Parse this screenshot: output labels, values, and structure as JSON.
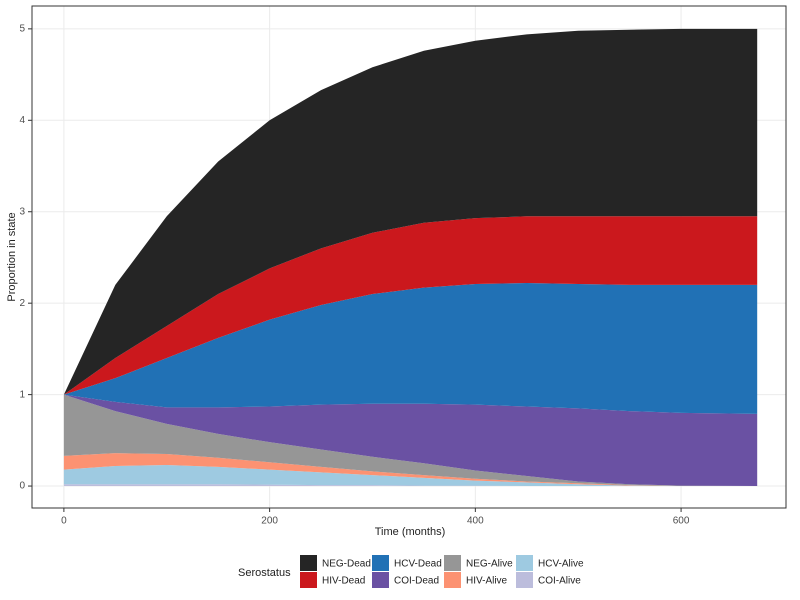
{
  "chart_data": {
    "type": "stacked-area",
    "x_label": "Time (months)",
    "y_label": "Proportion in state",
    "x": [
      0,
      50,
      100,
      150,
      200,
      250,
      300,
      350,
      400,
      450,
      500,
      550,
      600,
      674
    ],
    "legend_title": "Serostatus",
    "series": [
      {
        "name": "NEG-Dead",
        "color": "#252525",
        "values": [
          0,
          0.8,
          1.2,
          1.45,
          1.62,
          1.73,
          1.81,
          1.88,
          1.94,
          1.99,
          2.03,
          2.04,
          2.05,
          2.05
        ]
      },
      {
        "name": "HIV-Dead",
        "color": "#cb181d",
        "values": [
          0,
          0.22,
          0.35,
          0.48,
          0.56,
          0.62,
          0.67,
          0.71,
          0.72,
          0.73,
          0.74,
          0.75,
          0.75,
          0.75
        ]
      },
      {
        "name": "HCV-Dead",
        "color": "#2171b5",
        "values": [
          0,
          0.26,
          0.54,
          0.76,
          0.95,
          1.09,
          1.2,
          1.27,
          1.32,
          1.35,
          1.36,
          1.38,
          1.4,
          1.41
        ]
      },
      {
        "name": "COI-Dead",
        "color": "#6a51a3",
        "values": [
          0,
          0.1,
          0.18,
          0.29,
          0.39,
          0.49,
          0.58,
          0.65,
          0.72,
          0.76,
          0.8,
          0.8,
          0.795,
          0.79
        ]
      },
      {
        "name": "NEG-Alive",
        "color": "#969696",
        "values": [
          0.67,
          0.46,
          0.33,
          0.26,
          0.22,
          0.19,
          0.16,
          0.13,
          0.09,
          0.06,
          0.02,
          0.01,
          0.005,
          0
        ]
      },
      {
        "name": "HIV-Alive",
        "color": "#fc9272",
        "values": [
          0.15,
          0.14,
          0.12,
          0.1,
          0.08,
          0.06,
          0.04,
          0.03,
          0.02,
          0.01,
          0.01,
          0.005,
          0,
          0
        ]
      },
      {
        "name": "HCV-Alive",
        "color": "#9ecae1",
        "values": [
          0.16,
          0.2,
          0.21,
          0.19,
          0.165,
          0.14,
          0.11,
          0.085,
          0.055,
          0.04,
          0.02,
          0.005,
          0,
          0
        ]
      },
      {
        "name": "COI-Alive",
        "color": "#bcbddc",
        "values": [
          0.02,
          0.02,
          0.02,
          0.02,
          0.015,
          0.01,
          0.01,
          0.005,
          0.005,
          0,
          0,
          0,
          0,
          0
        ]
      }
    ],
    "xlim": [
      -31,
      702
    ],
    "ylim": [
      -0.24,
      5.25
    ],
    "xticks": [
      0,
      200,
      400,
      600
    ],
    "yticks": [
      0,
      1,
      2,
      3,
      4,
      5
    ],
    "grid": true,
    "legend_position": "bottom"
  }
}
